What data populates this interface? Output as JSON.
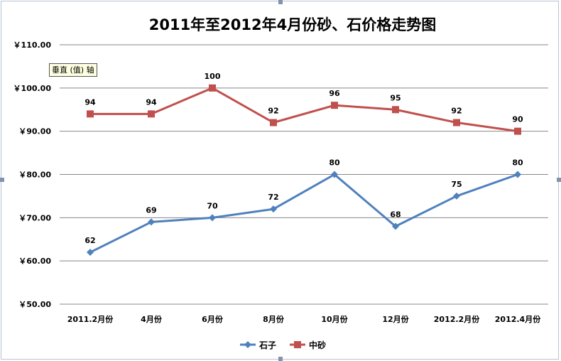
{
  "tooltip": "垂直 (值) 轴",
  "chart_data": {
    "type": "line",
    "title": "2011年至2012年4月份砂、石价格走势图",
    "categories": [
      "2011.2月份",
      "4月份",
      "6月份",
      "8月份",
      "10月份",
      "12月份",
      "2012.2月份",
      "2012.4月份"
    ],
    "series": [
      {
        "name": "石子",
        "values": [
          62,
          69,
          70,
          72,
          80,
          68,
          75,
          80
        ],
        "color": "#4f81bd",
        "marker": "diamond"
      },
      {
        "name": "中砂",
        "values": [
          94,
          94,
          100,
          92,
          96,
          95,
          92,
          90
        ],
        "color": "#c0504d",
        "marker": "square"
      }
    ],
    "ylim": [
      50,
      110
    ],
    "yticks": [
      50,
      60,
      70,
      80,
      90,
      100,
      110
    ],
    "ytick_labels": [
      "￥50.00",
      "￥60.00",
      "￥70.00",
      "￥80.00",
      "￥90.00",
      "￥100.00",
      "￥110.00"
    ],
    "grid": true,
    "legend": "bottom"
  }
}
